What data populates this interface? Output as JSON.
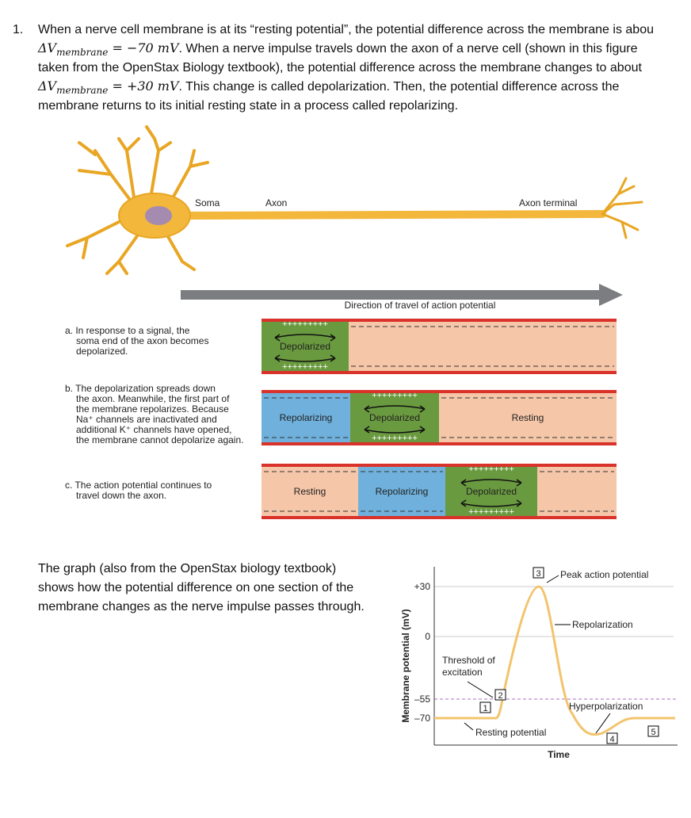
{
  "question": {
    "number": "1.",
    "line1": "When a nerve cell membrane is at its “resting potential”, the potential difference across the membrane is abou",
    "math1": {
      "symbol": "ΔV",
      "sub": "membrane",
      "rest": " = −70 mV"
    },
    "line2": ". When a nerve impulse travels down the axon of a nerve cell (shown in this figure",
    "line3": "taken from the OpenStax Biology textbook), the potential difference across the membrane changes to about",
    "math2": {
      "symbol": "ΔV",
      "sub": "membrane",
      "rest": " = +30 mV"
    },
    "line4": ".  This change is called depolarization.  Then, the potential difference across the",
    "line5": "membrane returns to its initial resting state in a process called repolarizing."
  },
  "figure": {
    "soma": "Soma",
    "axon": "Axon",
    "axon_terminal": "Axon terminal",
    "direction": "Direction of travel of action potential",
    "plus": "+++++++++",
    "steps": [
      {
        "caption": [
          "a. In response to a signal, the",
          "soma end of the axon becomes",
          "depolarized."
        ],
        "labels": [
          "Depolarized"
        ]
      },
      {
        "caption": [
          "b. The depolarization spreads down",
          "the axon. Meanwhile, the first part of",
          "the membrane repolarizes. Because",
          "Na⁺ channels are inactivated and",
          "additional K⁺ channels have opened,",
          "the membrane cannot depolarize again."
        ],
        "labels": [
          "Repolarizing",
          "Depolarized",
          "Resting"
        ]
      },
      {
        "caption": [
          "c. The action potential continues to",
          "travel down the axon."
        ],
        "labels": [
          "Resting",
          "Repolarizing",
          "Depolarized"
        ]
      }
    ]
  },
  "graph_text": [
    "The graph (also from the OpenStax biology textbook)",
    "shows how the potential difference on one section of the",
    "membrane changes as the nerve impulse passes through."
  ],
  "graph": {
    "y_label": "Membrane potential (mV)",
    "x_label": "Time",
    "yticks": [
      "+30",
      "0",
      "–55",
      "–70"
    ],
    "peak": "Peak action potential",
    "repolarization": "Repolarization",
    "threshold": [
      "Threshold of",
      "excitation"
    ],
    "hyperpolarization": "Hyperpolarization",
    "resting": "Resting potential",
    "markers": [
      "1",
      "2",
      "3",
      "4",
      "5"
    ]
  }
}
